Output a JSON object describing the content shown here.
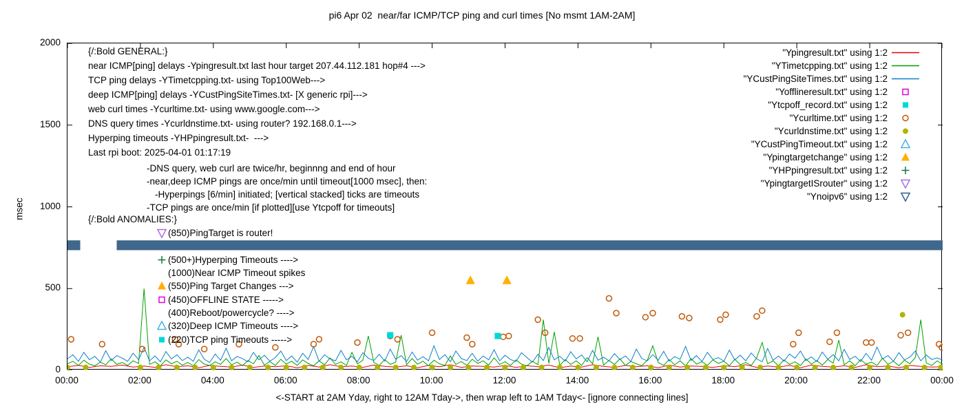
{
  "title": "pi6 Apr 02  near/far ICMP/TCP ping and curl times [No msmt 1AM-2AM]",
  "axes": {
    "ylabel": "msec",
    "xlabel": "<-START at 2AM Yday, right to 12AM Tday->, then wrap left to 1AM Tday<- [ignore connecting lines]",
    "yticks": [
      0,
      500,
      1000,
      1500,
      2000
    ],
    "xticks_hours": [
      0,
      2,
      4,
      6,
      8,
      10,
      12,
      14,
      16,
      18,
      20,
      22,
      24
    ],
    "xtick_labels": [
      "00:00",
      "02:00",
      "04:00",
      "06:00",
      "08:00",
      "10:00",
      "12:00",
      "14:00",
      "16:00",
      "18:00",
      "20:00",
      "22:00",
      "00:00"
    ]
  },
  "legend": [
    {
      "label": "\"Ypingresult.txt\" using 1:2",
      "marker": {
        "type": "line",
        "color": "#e60000"
      }
    },
    {
      "label": "\"YTimetcpping.txt\" using 1:2",
      "marker": {
        "type": "line",
        "color": "#00a000"
      }
    },
    {
      "label": "\"YCustPingSiteTimes.txt\" using 1:2",
      "marker": {
        "type": "line",
        "color": "#0a80c8"
      }
    },
    {
      "label": "\"Yofflineresult.txt\" using 1:2",
      "marker": {
        "type": "square-open",
        "color": "#e000e0"
      }
    },
    {
      "label": "\"Ytcpoff_record.txt\" using 1:2",
      "marker": {
        "type": "square-filled",
        "color": "#00d8d8"
      }
    },
    {
      "label": "\"Ycurltime.txt\" using 1:2",
      "marker": {
        "type": "circle-open",
        "color": "#c05a0a"
      }
    },
    {
      "label": "\"Ycurldnstime.txt\" using 1:2",
      "marker": {
        "type": "circle-filled",
        "color": "#b2b400"
      }
    },
    {
      "label": "\"YCustPingTimeout.txt\" using 1:2",
      "marker": {
        "type": "triangle-up-open",
        "color": "#45b4e0"
      }
    },
    {
      "label": "\"Ypingtargetchange\" using 1:2",
      "marker": {
        "type": "triangle-up-filled",
        "color": "#ffb000"
      }
    },
    {
      "label": "\"YHPpingresult.txt\" using 1:2",
      "marker": {
        "type": "plus",
        "color": "#0b7a3a"
      }
    },
    {
      "label": "\"YpingtargetISrouter\" using 1:2",
      "marker": {
        "type": "triangle-down-open",
        "color": "#a86fe4"
      }
    },
    {
      "label": "\"Ynoipv6\" using 1:2",
      "marker": {
        "type": "triangle-down-open",
        "color": "#2f5f88"
      }
    }
  ],
  "annotations": {
    "general": {
      "heading": "{/:Bold GENERAL:}",
      "lines": [
        "near ICMP[ping] delays -Ypingresult.txt last hour target 207.44.112.181 hop#4 --->",
        "TCP ping delays -YTimetcpping.txt- using Top100Web--->",
        "deep ICMP[ping] delays -YCustPingSiteTimes.txt- [X generic rpi]--->",
        "web curl times -Ycurltime.txt- using www.google.com--->",
        "DNS query times -Ycurldnstime.txt- using router? 192.168.0.1--->",
        "Hyperping timeouts -YHPpingresult.txt-  --->",
        "Last rpi boot: 2025-04-01 01:17:19"
      ],
      "notes": [
        "-DNS query, web curl are twice/hr, beginnng and end of hour",
        "-near,deep ICMP pings are once/min until timeout[1000 msec], then:",
        "-Hyperpings [6/min] initiated; [vertical stacked] ticks are timeouts",
        "-TCP pings are once/min [if plotted][use Ytcpoff for timeouts]"
      ]
    },
    "anomalies": {
      "heading": "{/:Bold ANOMALIES:}",
      "items": [
        {
          "marker": {
            "type": "triangle-down-open",
            "color": "#a86fe4"
          },
          "text": "(850)PingTarget is router!"
        },
        {
          "marker": {
            "type": "",
            "color": ""
          },
          "text": ""
        },
        {
          "marker": {
            "type": "plus",
            "color": "#0b7a3a"
          },
          "text": "(500+)Hyperping Timeouts ---->"
        },
        {
          "marker": {
            "type": "",
            "color": ""
          },
          "text": "(1000)Near ICMP Timeout spikes"
        },
        {
          "marker": {
            "type": "triangle-up-filled",
            "color": "#ffb000"
          },
          "text": "(550)Ping Target Changes --->"
        },
        {
          "marker": {
            "type": "square-open",
            "color": "#e000e0"
          },
          "text": "(450)OFFLINE STATE ----->"
        },
        {
          "marker": {
            "type": "",
            "color": ""
          },
          "text": "(400)Reboot/powercycle? ---->"
        },
        {
          "marker": {
            "type": "triangle-up-open",
            "color": "#45b4e0"
          },
          "text": "(320)Deep ICMP Timeouts ---->"
        },
        {
          "marker": {
            "type": "square-filled",
            "color": "#00d8d8"
          },
          "text": "(220)TCP ping Timeouts ----->"
        }
      ]
    }
  },
  "chart_data": {
    "type": "line+scatter",
    "title": "pi6 Apr 02  near/far ICMP/TCP ping and curl times [No msmt 1AM-2AM]",
    "xlabel": "<-START at 2AM Yday, right to 12AM Tday->, then wrap left to 1AM Tday<- [ignore connecting lines]",
    "ylabel": "msec",
    "xlim": [
      0,
      24
    ],
    "ylim": [
      0,
      2000
    ],
    "grid": false,
    "legend_position": "top-right",
    "band": {
      "name": "Ynoipv6",
      "color": "#40688c",
      "y_low": 735,
      "y_high": 795,
      "segments": [
        [
          0,
          0.35
        ],
        [
          1.35,
          24
        ]
      ]
    },
    "lines": [
      {
        "name": "Ypingresult",
        "color": "#e60000",
        "x0": 0,
        "dx": 0.3,
        "values": [
          22,
          30,
          18,
          28,
          24,
          32,
          20,
          26,
          18,
          34,
          22,
          28,
          16,
          30,
          24,
          20,
          32,
          18,
          26,
          22,
          28,
          16,
          30,
          20,
          34,
          22,
          26,
          18,
          32,
          24,
          20,
          28,
          16,
          30,
          22,
          34,
          18,
          26,
          24,
          20,
          30,
          18,
          28,
          22,
          32,
          16,
          26,
          20,
          34,
          24,
          18,
          30,
          22,
          28,
          16,
          32,
          20,
          26,
          24,
          18,
          28,
          22,
          34,
          18,
          26,
          20,
          30,
          16,
          32,
          24,
          20,
          28,
          18,
          34,
          22,
          26,
          16,
          30,
          24,
          20,
          22
        ]
      },
      {
        "name": "YTimetcpping",
        "color": "#00a000",
        "x0": 0,
        "dx": 0.15,
        "values": [
          40,
          55,
          30,
          62,
          38,
          28,
          50,
          34,
          70,
          36,
          48,
          30,
          58,
          42,
          500,
          36,
          52,
          28,
          64,
          40,
          55,
          32,
          48,
          28,
          66,
          38,
          30,
          52,
          36,
          72,
          34,
          50,
          28,
          60,
          40,
          90,
          32,
          54,
          30,
          68,
          38,
          56,
          30,
          64,
          42,
          28,
          58,
          34,
          76,
          36,
          52,
          30,
          110,
          40,
          62,
          210,
          48,
          30,
          66,
          36,
          50,
          215,
          34,
          72,
          38,
          56,
          28,
          62,
          40,
          30,
          88,
          36,
          54,
          30,
          68,
          42,
          58,
          32,
          76,
          36,
          52,
          30,
          64,
          38,
          28,
          56,
          34,
          310,
          42,
          235,
          30,
          66,
          36,
          58,
          30,
          78,
          40,
          205,
          32,
          60,
          36,
          70,
          30,
          54,
          40,
          28,
          62,
          150,
          48,
          30,
          66,
          34,
          58,
          28,
          72,
          38,
          52,
          30,
          64,
          42,
          56,
          28,
          68,
          34,
          48,
          30,
          76,
          170,
          40,
          58,
          28,
          64,
          36,
          52,
          30,
          70,
          38,
          60,
          32,
          66,
          44,
          185,
          34,
          58,
          28,
          66,
          38,
          50,
          30,
          74,
          36,
          56,
          28,
          62,
          40,
          78,
          310,
          46,
          30,
          58,
          36
        ]
      },
      {
        "name": "YCustPingSiteTimes",
        "color": "#0a80c8",
        "x0": 0,
        "dx": 0.15,
        "values": [
          70,
          95,
          55,
          110,
          65,
          85,
          50,
          120,
          60,
          90,
          75,
          55,
          105,
          65,
          140,
          58,
          88,
          52,
          115,
          70,
          95,
          60,
          80,
          55,
          125,
          68,
          48,
          100,
          62,
          135,
          58,
          85,
          72,
          52,
          110,
          64,
          92,
          56,
          78,
          118,
          60,
          88,
          50,
          105,
          66,
          145,
          55,
          95,
          70,
          58,
          122,
          64,
          86,
          52,
          108,
          74,
          60,
          98,
          56,
          130,
          68,
          90,
          54,
          112,
          62,
          84,
          58,
          150,
          66,
          96,
          52,
          118,
          72,
          60,
          104,
          56,
          88,
          64,
          126,
          58,
          92,
          66,
          54,
          108,
          78,
          50,
          98,
          60,
          140,
          64,
          86,
          56,
          114,
          70,
          94,
          52,
          122,
          62,
          80,
          58,
          102,
          66,
          88,
          54,
          130,
          72,
          58,
          96,
          62,
          116,
          56,
          84,
          68,
          146,
          60,
          90,
          54,
          110,
          66,
          78,
          56,
          124,
          64,
          92,
          58,
          106,
          70,
          52,
          134,
          62,
          88,
          56,
          100,
          74,
          118,
          60,
          82,
          54,
          112,
          68,
          96,
          58,
          128,
          66,
          86,
          54,
          104,
          62,
          142,
          70,
          90,
          56,
          108,
          64,
          80,
          118,
          58,
          94,
          66,
          76,
          62
        ]
      }
    ],
    "scatter": [
      {
        "name": "Ycurltime",
        "marker": "circle-open",
        "color": "#c05a0a",
        "size": 8,
        "points": [
          [
            0.1,
            190
          ],
          [
            0.95,
            160
          ],
          [
            2.05,
            130
          ],
          [
            2.95,
            190
          ],
          [
            3.05,
            160
          ],
          [
            3.75,
            130
          ],
          [
            4.7,
            160
          ],
          [
            5.7,
            140
          ],
          [
            6.75,
            160
          ],
          [
            6.9,
            190
          ],
          [
            7.95,
            170
          ],
          [
            8.85,
            210
          ],
          [
            9.05,
            190
          ],
          [
            10.0,
            230
          ],
          [
            10.95,
            200
          ],
          [
            11.1,
            160
          ],
          [
            11.95,
            205
          ],
          [
            12.1,
            210
          ],
          [
            12.9,
            310
          ],
          [
            13.1,
            230
          ],
          [
            13.85,
            195
          ],
          [
            14.05,
            195
          ],
          [
            14.85,
            440
          ],
          [
            15.05,
            350
          ],
          [
            15.85,
            325
          ],
          [
            16.05,
            350
          ],
          [
            16.85,
            330
          ],
          [
            17.05,
            320
          ],
          [
            17.9,
            310
          ],
          [
            18.05,
            340
          ],
          [
            18.9,
            330
          ],
          [
            19.05,
            365
          ],
          [
            19.9,
            160
          ],
          [
            20.05,
            230
          ],
          [
            20.9,
            175
          ],
          [
            21.1,
            230
          ],
          [
            21.9,
            170
          ],
          [
            22.05,
            170
          ],
          [
            22.85,
            215
          ],
          [
            23.05,
            230
          ],
          [
            23.9,
            160
          ],
          [
            23.98,
            140
          ]
        ]
      },
      {
        "name": "Ycurldnstime",
        "marker": "circle-filled",
        "color": "#b2b400",
        "size": 8,
        "points": [
          [
            0,
            18
          ],
          [
            0.5,
            18
          ],
          [
            2,
            18
          ],
          [
            2.5,
            18
          ],
          [
            3,
            18
          ],
          [
            3.5,
            18
          ],
          [
            4,
            18
          ],
          [
            4.5,
            18
          ],
          [
            5,
            18
          ],
          [
            5.5,
            18
          ],
          [
            6,
            18
          ],
          [
            6.5,
            18
          ],
          [
            7,
            18
          ],
          [
            7.5,
            18
          ],
          [
            8,
            18
          ],
          [
            8.5,
            18
          ],
          [
            9,
            18
          ],
          [
            9.5,
            18
          ],
          [
            10,
            18
          ],
          [
            10.5,
            18
          ],
          [
            11,
            18
          ],
          [
            11.5,
            18
          ],
          [
            12,
            18
          ],
          [
            12.5,
            18
          ],
          [
            13,
            18
          ],
          [
            13.5,
            18
          ],
          [
            14,
            18
          ],
          [
            14.5,
            18
          ],
          [
            15,
            18
          ],
          [
            15.5,
            18
          ],
          [
            16,
            18
          ],
          [
            16.5,
            18
          ],
          [
            17,
            18
          ],
          [
            17.5,
            18
          ],
          [
            18,
            18
          ],
          [
            18.5,
            18
          ],
          [
            19,
            18
          ],
          [
            19.5,
            18
          ],
          [
            20,
            18
          ],
          [
            20.5,
            18
          ],
          [
            21,
            18
          ],
          [
            21.5,
            18
          ],
          [
            22,
            18
          ],
          [
            22.5,
            18
          ],
          [
            23,
            18
          ],
          [
            23.5,
            18
          ],
          [
            23.95,
            18
          ],
          [
            22.9,
            340
          ]
        ]
      },
      {
        "name": "Ytcpoff_record",
        "marker": "square-filled",
        "color": "#00d8d8",
        "size": 9,
        "points": [
          [
            8.85,
            215
          ],
          [
            11.8,
            210
          ]
        ]
      },
      {
        "name": "Ypingtargetchange",
        "marker": "triangle-up-filled",
        "color": "#ffb000",
        "size": 12,
        "points": [
          [
            11.05,
            550
          ],
          [
            12.05,
            550
          ]
        ]
      }
    ]
  }
}
